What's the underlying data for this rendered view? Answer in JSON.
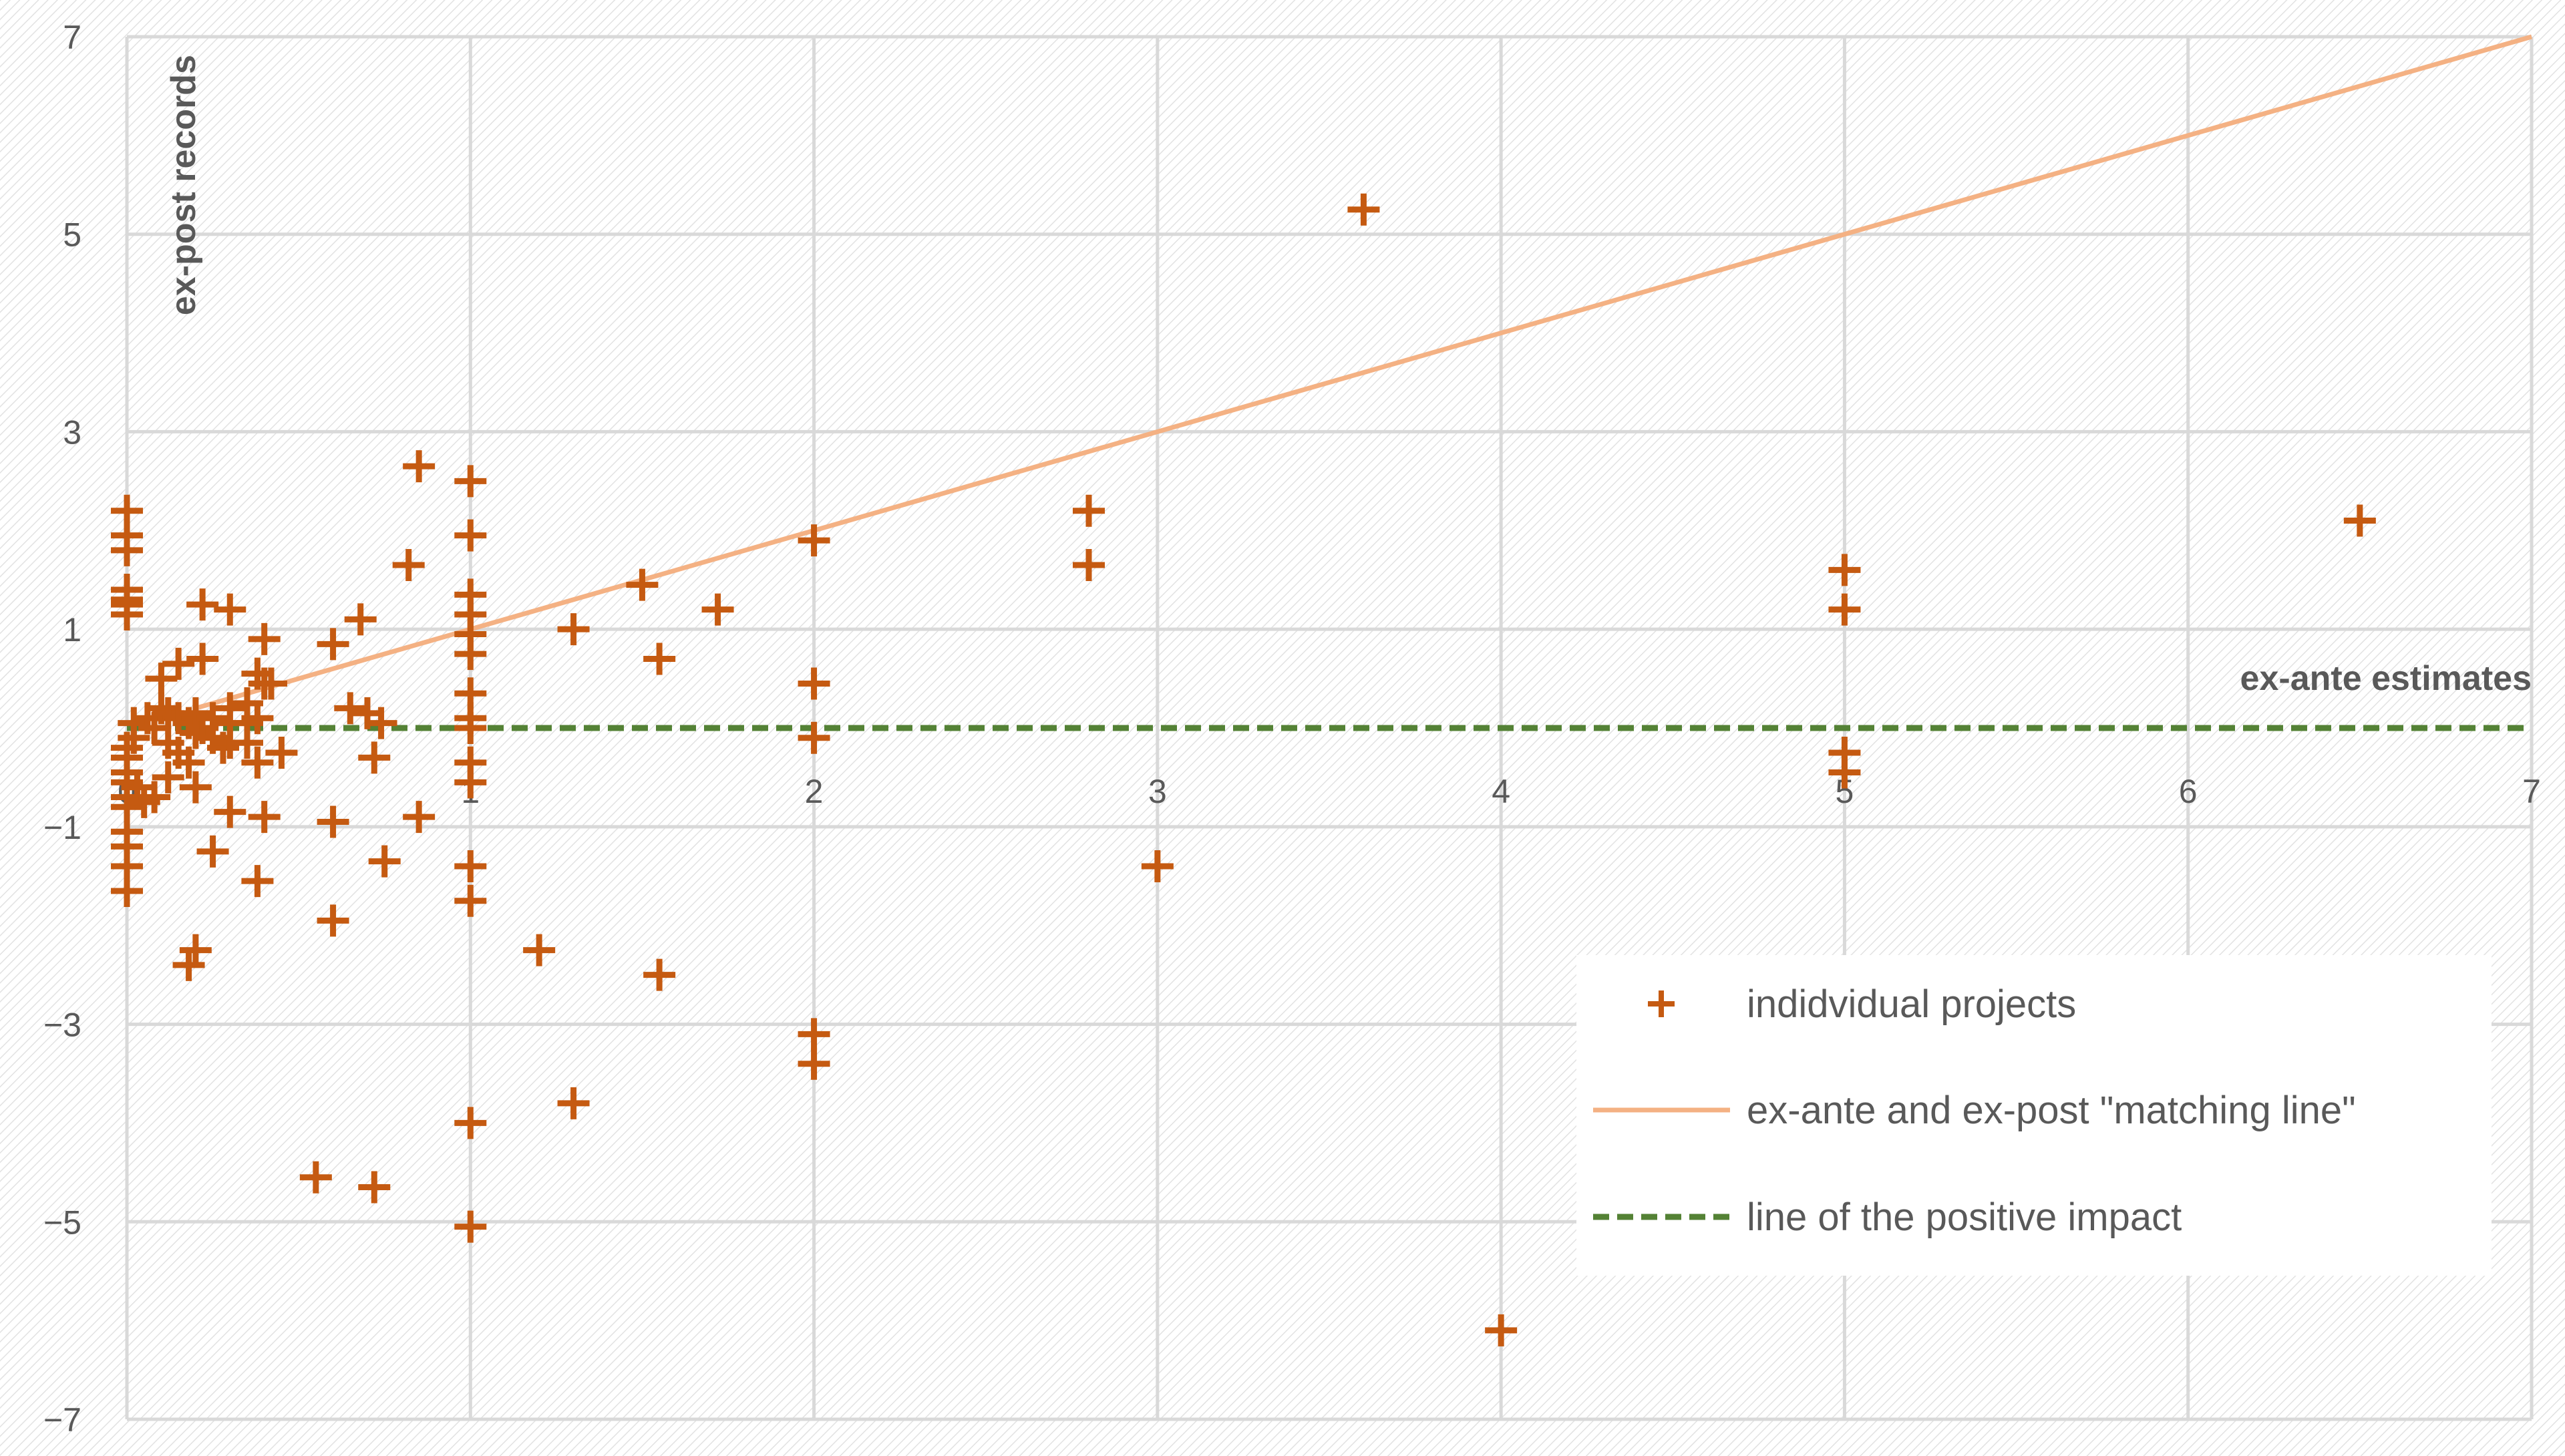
{
  "chart_data": {
    "type": "scatter",
    "title": "",
    "xlabel": "ex-ante estimates",
    "ylabel": "ex-post records",
    "xlim": [
      0,
      7
    ],
    "ylim": [
      -7,
      7
    ],
    "x_ticks": [
      "0",
      "1",
      "2",
      "3",
      "4",
      "5",
      "6",
      "7"
    ],
    "y_ticks": [
      "7",
      "5",
      "3",
      "1",
      "−1",
      "−3",
      "−5",
      "−7"
    ],
    "grid": true,
    "legend_position": "bottom-right",
    "colors": {
      "points": "#C55A11",
      "matching_line": "#F4B183",
      "positive_line": "#548235",
      "grid": "#D9D9D9",
      "text": "#595959"
    },
    "series": [
      {
        "name": "indidvidual projects",
        "kind": "scatter",
        "points": [
          [
            0,
            2.2
          ],
          [
            0,
            1.95
          ],
          [
            0,
            1.8
          ],
          [
            0,
            1.4
          ],
          [
            0,
            1.3
          ],
          [
            0,
            1.25
          ],
          [
            0,
            1.15
          ],
          [
            0,
            -0.2
          ],
          [
            0,
            -0.3
          ],
          [
            0,
            -0.45
          ],
          [
            0,
            -0.55
          ],
          [
            0,
            -0.7
          ],
          [
            0,
            -0.8
          ],
          [
            0,
            -1.05
          ],
          [
            0,
            -1.2
          ],
          [
            0,
            -1.4
          ],
          [
            0,
            -1.65
          ],
          [
            0.02,
            0.05
          ],
          [
            0.02,
            -0.1
          ],
          [
            0.03,
            -0.6
          ],
          [
            0.05,
            -0.75
          ],
          [
            0.06,
            0.1
          ],
          [
            0.08,
            0.0
          ],
          [
            0.08,
            -0.7
          ],
          [
            0.1,
            0.5
          ],
          [
            0.1,
            0.2
          ],
          [
            0.12,
            0.15
          ],
          [
            0.12,
            -0.15
          ],
          [
            0.12,
            -0.5
          ],
          [
            0.15,
            0.65
          ],
          [
            0.15,
            0.1
          ],
          [
            0.15,
            -0.25
          ],
          [
            0.18,
            0.05
          ],
          [
            0.18,
            -0.35
          ],
          [
            0.2,
            0.15
          ],
          [
            0.2,
            -0.05
          ],
          [
            0.2,
            -0.6
          ],
          [
            0.22,
            0.0
          ],
          [
            0.25,
            0.1
          ],
          [
            0.25,
            -0.1
          ],
          [
            0.28,
            -0.2
          ],
          [
            0.18,
            -2.4
          ],
          [
            0.2,
            -2.25
          ],
          [
            0.22,
            0.7
          ],
          [
            0.22,
            1.25
          ],
          [
            0.25,
            -1.25
          ],
          [
            0.3,
            1.2
          ],
          [
            0.3,
            0.2
          ],
          [
            0.3,
            0.05
          ],
          [
            0.3,
            -0.15
          ],
          [
            0.3,
            -0.85
          ],
          [
            0.35,
            0.25
          ],
          [
            0.38,
            0.1
          ],
          [
            0.38,
            -0.35
          ],
          [
            0.35,
            0.05
          ],
          [
            0.35,
            -0.15
          ],
          [
            0.38,
            0.55
          ],
          [
            0.38,
            -1.55
          ],
          [
            0.4,
            0.9
          ],
          [
            0.4,
            -0.9
          ],
          [
            0.4,
            0.45
          ],
          [
            0.42,
            0.45
          ],
          [
            0.45,
            -0.25
          ],
          [
            0.55,
            -4.55
          ],
          [
            0.6,
            0.85
          ],
          [
            0.6,
            -0.95
          ],
          [
            0.6,
            -1.95
          ],
          [
            0.65,
            0.2
          ],
          [
            0.68,
            1.1
          ],
          [
            0.7,
            0.15
          ],
          [
            0.72,
            -0.3
          ],
          [
            0.72,
            -4.65
          ],
          [
            0.74,
            0.05
          ],
          [
            0.75,
            -1.35
          ],
          [
            0.82,
            1.65
          ],
          [
            0.85,
            2.65
          ],
          [
            0.85,
            -0.9
          ],
          [
            1,
            2.5
          ],
          [
            1,
            1.95
          ],
          [
            1,
            1.35
          ],
          [
            1,
            1.15
          ],
          [
            1,
            0.95
          ],
          [
            1,
            0.75
          ],
          [
            1,
            0.35
          ],
          [
            1,
            0.1
          ],
          [
            1,
            0.0
          ],
          [
            1,
            -0.35
          ],
          [
            1,
            -0.55
          ],
          [
            1,
            -1.4
          ],
          [
            1,
            -1.75
          ],
          [
            1,
            -4.0
          ],
          [
            1,
            -5.05
          ],
          [
            1.2,
            -2.25
          ],
          [
            1.3,
            1.0
          ],
          [
            1.3,
            -3.8
          ],
          [
            1.5,
            1.45
          ],
          [
            1.55,
            0.7
          ],
          [
            1.55,
            -2.5
          ],
          [
            1.72,
            1.2
          ],
          [
            2,
            1.9
          ],
          [
            2,
            0.45
          ],
          [
            2,
            -0.1
          ],
          [
            2,
            -3.1
          ],
          [
            2,
            -3.4
          ],
          [
            2.8,
            2.2
          ],
          [
            2.8,
            1.65
          ],
          [
            3,
            -1.4
          ],
          [
            3.6,
            5.25
          ],
          [
            4,
            -6.1
          ],
          [
            5,
            1.6
          ],
          [
            5,
            1.2
          ],
          [
            5,
            -0.25
          ],
          [
            5,
            -0.45
          ],
          [
            6.5,
            2.1
          ]
        ]
      },
      {
        "name": "ex-ante and ex-post \"matching line\"",
        "kind": "line",
        "points": [
          [
            0.2,
            0.2
          ],
          [
            7,
            7
          ]
        ]
      },
      {
        "name": "line of the positive impact",
        "kind": "dashed-line",
        "points": [
          [
            0,
            0
          ],
          [
            7,
            0
          ]
        ]
      }
    ]
  }
}
